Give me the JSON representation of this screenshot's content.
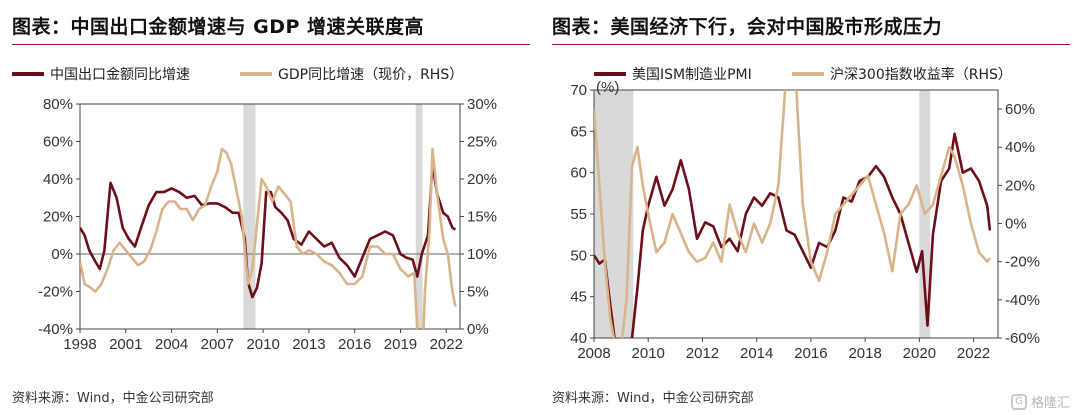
{
  "left": {
    "title": "图表：中国出口金额增速与 GDP 增速关联度高",
    "source": "资料来源：Wind，中金公司研究部"
  },
  "right": {
    "title": "图表：美国经济下行，会对中国股市形成压力",
    "source": "资料来源：Wind，中金公司研究部"
  },
  "watermark": {
    "label": "格隆汇",
    "icon": "g-logo-icon"
  },
  "chart_data": [
    {
      "type": "line",
      "colors": {
        "export": "#6b0f1a",
        "gdp": "#d9b48a",
        "shade": "#d9d9d9"
      },
      "xlim": [
        1998,
        2022.9
      ],
      "x_ticks": [
        1998,
        2001,
        2004,
        2007,
        2010,
        2013,
        2016,
        2019,
        2022
      ],
      "x_tick_labels": [
        "1998",
        "2001",
        "2004",
        "2007",
        "2010",
        "2013",
        "2016",
        "2019",
        "2022"
      ],
      "y_left": {
        "lim": [
          -40,
          80
        ],
        "ticks": [
          -40,
          -20,
          0,
          20,
          40,
          60,
          80
        ],
        "tick_labels": [
          "-40%",
          "-20%",
          "0%",
          "20%",
          "40%",
          "60%",
          "80%"
        ]
      },
      "y_right": {
        "lim": [
          0,
          30
        ],
        "ticks": [
          0,
          5,
          10,
          15,
          20,
          25,
          30
        ],
        "tick_labels": [
          "0%",
          "5%",
          "10%",
          "15%",
          "20%",
          "25%",
          "30%"
        ]
      },
      "shaded_periods": [
        [
          2008.7,
          2009.5
        ],
        [
          2020.0,
          2020.45
        ]
      ],
      "legend_position": "top",
      "series": [
        {
          "name": "中国出口金额同比增速",
          "axis": "left",
          "x": [
            1998.0,
            1998.3,
            1998.6,
            1999.0,
            1999.3,
            1999.6,
            2000.0,
            2000.4,
            2000.8,
            2001.2,
            2001.6,
            2002.0,
            2002.5,
            2003.0,
            2003.5,
            2004.0,
            2004.5,
            2005.0,
            2005.5,
            2006.0,
            2006.5,
            2007.0,
            2007.5,
            2008.0,
            2008.4,
            2008.8,
            2009.0,
            2009.3,
            2009.6,
            2009.9,
            2010.2,
            2010.5,
            2010.8,
            2011.2,
            2011.6,
            2012.0,
            2012.5,
            2013.0,
            2013.5,
            2014.0,
            2014.5,
            2015.0,
            2015.5,
            2016.0,
            2016.5,
            2017.0,
            2017.5,
            2018.0,
            2018.5,
            2019.0,
            2019.4,
            2019.8,
            2020.1,
            2020.4,
            2020.8,
            2021.1,
            2021.4,
            2021.8,
            2022.1,
            2022.4,
            2022.6
          ],
          "y": [
            14,
            10,
            2,
            -4,
            -8,
            2,
            38,
            30,
            14,
            8,
            4,
            14,
            26,
            33,
            33,
            35,
            33,
            30,
            31,
            26,
            27,
            27,
            25,
            22,
            22,
            8,
            -15,
            -23,
            -18,
            -5,
            33,
            33,
            25,
            22,
            18,
            8,
            5,
            12,
            8,
            4,
            6,
            -2,
            -6,
            -12,
            -2,
            8,
            10,
            12,
            10,
            0,
            -2,
            -3,
            -12,
            0,
            10,
            48,
            32,
            22,
            20,
            14,
            13
          ]
        },
        {
          "name": "GDP同比增速（现价，RHS）",
          "axis": "right",
          "x": [
            1998.0,
            1998.3,
            1998.7,
            1999.0,
            1999.4,
            1999.8,
            2000.2,
            2000.6,
            2001.0,
            2001.4,
            2001.8,
            2002.2,
            2002.6,
            2003.0,
            2003.4,
            2003.8,
            2004.2,
            2004.6,
            2005.0,
            2005.4,
            2005.8,
            2006.2,
            2006.6,
            2007.0,
            2007.3,
            2007.6,
            2007.9,
            2008.2,
            2008.6,
            2009.0,
            2009.3,
            2009.6,
            2009.9,
            2010.2,
            2010.6,
            2011.0,
            2011.4,
            2011.8,
            2012.2,
            2012.6,
            2013.0,
            2013.5,
            2014.0,
            2014.5,
            2015.0,
            2015.5,
            2016.0,
            2016.5,
            2017.0,
            2017.5,
            2018.0,
            2018.5,
            2019.0,
            2019.5,
            2019.9,
            2020.1,
            2020.3,
            2020.6,
            2020.9,
            2021.1,
            2021.4,
            2021.8,
            2022.1,
            2022.4,
            2022.6
          ],
          "y": [
            9,
            6,
            5.5,
            5,
            6,
            8,
            10.5,
            11.5,
            10.5,
            9.5,
            8.5,
            9,
            10.5,
            13,
            16,
            17,
            17,
            16,
            16,
            14.5,
            16,
            16.5,
            19,
            21,
            24,
            23.5,
            22,
            19,
            15,
            6,
            8,
            14,
            20,
            19,
            17,
            19,
            18,
            17,
            11,
            10,
            10.5,
            10,
            9,
            8.5,
            7.5,
            6,
            6,
            7,
            11,
            11,
            10,
            10,
            8,
            7,
            7.5,
            0,
            -12,
            5,
            13,
            24,
            18,
            12,
            10,
            5,
            3
          ]
        }
      ]
    },
    {
      "type": "line",
      "colors": {
        "pmi": "#6b0f1a",
        "csi300": "#d9b48a",
        "shade": "#d9d9d9"
      },
      "xlim": [
        2008,
        2022.9
      ],
      "x_ticks": [
        2008,
        2010,
        2012,
        2014,
        2016,
        2018,
        2020,
        2022
      ],
      "x_tick_labels": [
        "2008",
        "2010",
        "2012",
        "2014",
        "2016",
        "2018",
        "2020",
        "2022"
      ],
      "y_left": {
        "lim": [
          40,
          70
        ],
        "ticks": [
          40,
          45,
          50,
          55,
          60,
          65,
          70
        ],
        "tick_labels": [
          "40",
          "45",
          "50",
          "55",
          "60",
          "65",
          "70"
        ],
        "unit": "(%)"
      },
      "y_right": {
        "lim": [
          -60,
          70
        ],
        "ticks": [
          -60,
          -40,
          -20,
          0,
          20,
          40,
          60
        ],
        "tick_labels": [
          "-60%",
          "-40%",
          "-20%",
          "0%",
          "20%",
          "40%",
          "60%"
        ]
      },
      "shaded_periods": [
        [
          2008.0,
          2009.45
        ],
        [
          2020.0,
          2020.4
        ]
      ],
      "legend_position": "top",
      "series": [
        {
          "name": "美国ISM制造业PMI",
          "axis": "left",
          "x": [
            2008.0,
            2008.2,
            2008.4,
            2008.6,
            2008.8,
            2009.0,
            2009.2,
            2009.4,
            2009.6,
            2009.8,
            2010.0,
            2010.3,
            2010.6,
            2010.9,
            2011.2,
            2011.5,
            2011.8,
            2012.1,
            2012.4,
            2012.7,
            2013.0,
            2013.3,
            2013.6,
            2013.9,
            2014.2,
            2014.5,
            2014.8,
            2015.1,
            2015.4,
            2015.7,
            2016.0,
            2016.3,
            2016.6,
            2016.9,
            2017.2,
            2017.5,
            2017.8,
            2018.1,
            2018.4,
            2018.7,
            2019.0,
            2019.3,
            2019.6,
            2019.9,
            2020.1,
            2020.3,
            2020.5,
            2020.8,
            2021.1,
            2021.3,
            2021.6,
            2021.9,
            2022.2,
            2022.5,
            2022.6
          ],
          "y": [
            50,
            49,
            49.5,
            44,
            38.9,
            35.5,
            36,
            40,
            46,
            53,
            56,
            59.5,
            56,
            58,
            61.5,
            58,
            52,
            54,
            53.5,
            51,
            52,
            50.5,
            55,
            57,
            56,
            57.5,
            57,
            53,
            52.5,
            50.5,
            48.5,
            51.5,
            51,
            53,
            57,
            56.5,
            59,
            59.5,
            60.8,
            59.5,
            57,
            55,
            51.5,
            48,
            50.5,
            41.5,
            52.5,
            59,
            60.5,
            64.7,
            60,
            60.5,
            59,
            56,
            53
          ]
        },
        {
          "name": "沪深300指数收益率（RHS）",
          "axis": "right",
          "x": [
            2008.0,
            2008.2,
            2008.4,
            2008.6,
            2008.8,
            2009.0,
            2009.2,
            2009.4,
            2009.6,
            2009.8,
            2010.0,
            2010.3,
            2010.6,
            2010.9,
            2011.2,
            2011.5,
            2011.8,
            2012.1,
            2012.4,
            2012.7,
            2013.0,
            2013.3,
            2013.6,
            2013.9,
            2014.2,
            2014.5,
            2014.8,
            2015.1,
            2015.3,
            2015.5,
            2015.7,
            2016.0,
            2016.3,
            2016.6,
            2016.9,
            2017.2,
            2017.5,
            2017.8,
            2018.1,
            2018.4,
            2018.7,
            2019.0,
            2019.3,
            2019.6,
            2019.9,
            2020.2,
            2020.5,
            2020.8,
            2021.1,
            2021.3,
            2021.6,
            2021.9,
            2022.2,
            2022.5,
            2022.6
          ],
          "y": [
            60,
            20,
            -20,
            -50,
            -65,
            -65,
            -40,
            30,
            40,
            20,
            5,
            -15,
            -10,
            5,
            -5,
            -15,
            -20,
            -18,
            -10,
            -20,
            10,
            -5,
            -15,
            0,
            -10,
            0,
            20,
            80,
            120,
            60,
            10,
            -20,
            -30,
            -15,
            5,
            10,
            15,
            20,
            25,
            10,
            -5,
            -25,
            5,
            10,
            20,
            5,
            10,
            25,
            40,
            35,
            20,
            0,
            -15,
            -20,
            -18
          ]
        }
      ]
    }
  ]
}
